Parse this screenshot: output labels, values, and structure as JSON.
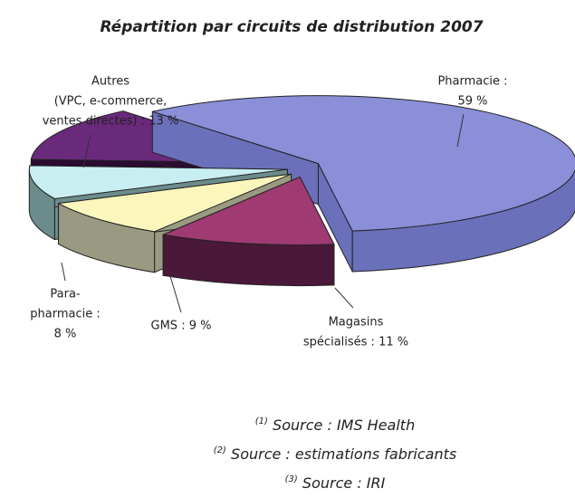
{
  "chart_data": {
    "type": "pie",
    "title": "Répartition par circuits de distribution 2007",
    "values": [
      59,
      11,
      9,
      8,
      13
    ],
    "value_labels": [
      [
        "Pharmacie :",
        "59 %"
      ],
      [
        "Magasins",
        "spécialisés : 11 %"
      ],
      [
        "GMS : 9 %"
      ],
      [
        "Para-",
        "pharmacie :",
        "8 %"
      ],
      [
        "Autres",
        "(VPC, e-commerce,",
        "ventes directes) : 13 %"
      ]
    ],
    "colors": [
      "#8a8fd8",
      "#a03a72",
      "#fbf7bc",
      "#c9eef2",
      "#6a2a7c"
    ],
    "side_colors": [
      "#6b70bb",
      "#4a1838",
      "#9a9a82",
      "#6c8c8c",
      "#2c0a32"
    ]
  },
  "footnotes": [
    {
      "marker": "(1)",
      "text": "Source : IMS Health"
    },
    {
      "marker": "(2)",
      "text": "Source : estimations fabricants"
    },
    {
      "marker": "(3)",
      "text": "Source : IRI"
    }
  ]
}
